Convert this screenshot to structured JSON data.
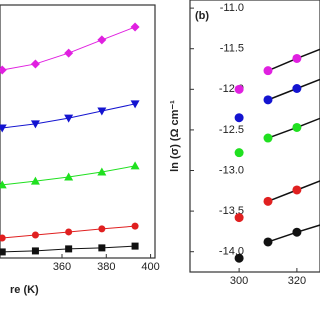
{
  "chart_data": [
    {
      "type": "line",
      "x_label": "re (K)",
      "xlim": [
        332,
        402
      ],
      "xticks": [
        360,
        380,
        400
      ],
      "ylim": [
        0,
        100
      ],
      "x": [
        333,
        348,
        363,
        378,
        393
      ],
      "series": [
        {
          "name": null,
          "color": "#e020e0",
          "marker": "diamond",
          "values": [
            74.3,
            76.7,
            81.0,
            86.2,
            91.3
          ]
        },
        {
          "name": null,
          "color": "#1414d0",
          "marker": "tri-down",
          "values": [
            51.4,
            53.0,
            55.3,
            58.1,
            60.9
          ]
        },
        {
          "name": null,
          "color": "#20e020",
          "marker": "tri-up",
          "values": [
            28.9,
            30.4,
            32.0,
            34.0,
            36.4
          ]
        },
        {
          "name": null,
          "color": "#e02020",
          "marker": "circle",
          "values": [
            7.9,
            9.1,
            10.3,
            11.5,
            12.6
          ]
        },
        {
          "name": null,
          "color": "#111111",
          "marker": "square",
          "values": [
            2.4,
            2.8,
            3.6,
            4.0,
            4.7
          ]
        }
      ]
    },
    {
      "type": "scatter",
      "panel_label": "(b)",
      "y_label": "ln (σ) (Ω cm⁻¹",
      "xlim": [
        283,
        328
      ],
      "xticks": [
        300,
        320
      ],
      "ylim": [
        -14.25,
        -10.9
      ],
      "yticks": [
        {
          "value": -11,
          "label": "-11.0"
        },
        -11.5,
        {
          "value": -12,
          "label": "-12.0"
        },
        -12.5,
        {
          "value": -13,
          "label": "-13.0"
        },
        -13.5,
        {
          "value": -14,
          "label": "-14.0"
        }
      ],
      "x": [
        300,
        310,
        320,
        330
      ],
      "series": [
        {
          "name": null,
          "color": "#e020e0",
          "values": [
            -12.0,
            -11.77,
            -11.62,
            -11.48
          ]
        },
        {
          "name": null,
          "color": "#1414d0",
          "values": [
            -12.35,
            -12.13,
            -11.99,
            -11.85
          ]
        },
        {
          "name": null,
          "color": "#20e020",
          "values": [
            -12.78,
            -12.6,
            -12.47,
            -12.33
          ]
        },
        {
          "name": null,
          "color": "#e02020",
          "values": [
            -13.58,
            -13.38,
            -13.24,
            -13.1
          ]
        },
        {
          "name": null,
          "color": "#111111",
          "values": [
            -14.08,
            -13.88,
            -13.76,
            -13.65
          ]
        }
      ]
    }
  ]
}
